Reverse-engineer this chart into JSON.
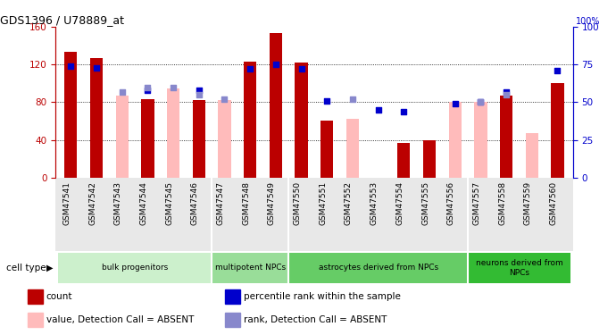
{
  "title": "GDS1396 / U78889_at",
  "samples": [
    "GSM47541",
    "GSM47542",
    "GSM47543",
    "GSM47544",
    "GSM47545",
    "GSM47546",
    "GSM47547",
    "GSM47548",
    "GSM47549",
    "GSM47550",
    "GSM47551",
    "GSM47552",
    "GSM47553",
    "GSM47554",
    "GSM47555",
    "GSM47556",
    "GSM47557",
    "GSM47558",
    "GSM47559",
    "GSM47560"
  ],
  "count_values": [
    133,
    127,
    null,
    83,
    null,
    82,
    null,
    123,
    153,
    122,
    60,
    null,
    null,
    37,
    40,
    null,
    null,
    87,
    null,
    100
  ],
  "rank_values": [
    74,
    73,
    null,
    58,
    null,
    58,
    null,
    72,
    75,
    72,
    51,
    null,
    45,
    44,
    null,
    49,
    50,
    57,
    null,
    71
  ],
  "absent_count": [
    null,
    null,
    87,
    null,
    95,
    null,
    82,
    null,
    null,
    null,
    null,
    62,
    null,
    null,
    null,
    80,
    80,
    null,
    47,
    null
  ],
  "absent_rank": [
    null,
    null,
    57,
    60,
    60,
    55,
    52,
    null,
    null,
    null,
    null,
    52,
    null,
    null,
    null,
    null,
    50,
    55,
    null,
    null
  ],
  "cell_groups": [
    {
      "label": "bulk progenitors",
      "start": 0,
      "end": 6,
      "color": "#ccf0cc"
    },
    {
      "label": "multipotent NPCs",
      "start": 6,
      "end": 9,
      "color": "#99dd99"
    },
    {
      "label": "astrocytes derived from NPCs",
      "start": 9,
      "end": 16,
      "color": "#66cc66"
    },
    {
      "label": "neurons derived from\nNPCs",
      "start": 16,
      "end": 20,
      "color": "#33bb33"
    }
  ],
  "bar_color_red": "#bb0000",
  "bar_color_pink": "#ffbbbb",
  "dot_color_blue": "#0000cc",
  "dot_color_lblue": "#8888cc",
  "ylim_left": [
    0,
    160
  ],
  "ylim_right": [
    0,
    100
  ],
  "grid_yticks_left": [
    0,
    40,
    80,
    120,
    160
  ],
  "grid_yticks_right": [
    0,
    25,
    50,
    75,
    100
  ],
  "legend_items": [
    {
      "color": "#bb0000",
      "label": "count"
    },
    {
      "color": "#0000cc",
      "label": "percentile rank within the sample"
    },
    {
      "color": "#ffbbbb",
      "label": "value, Detection Call = ABSENT"
    },
    {
      "color": "#8888cc",
      "label": "rank, Detection Call = ABSENT"
    }
  ]
}
